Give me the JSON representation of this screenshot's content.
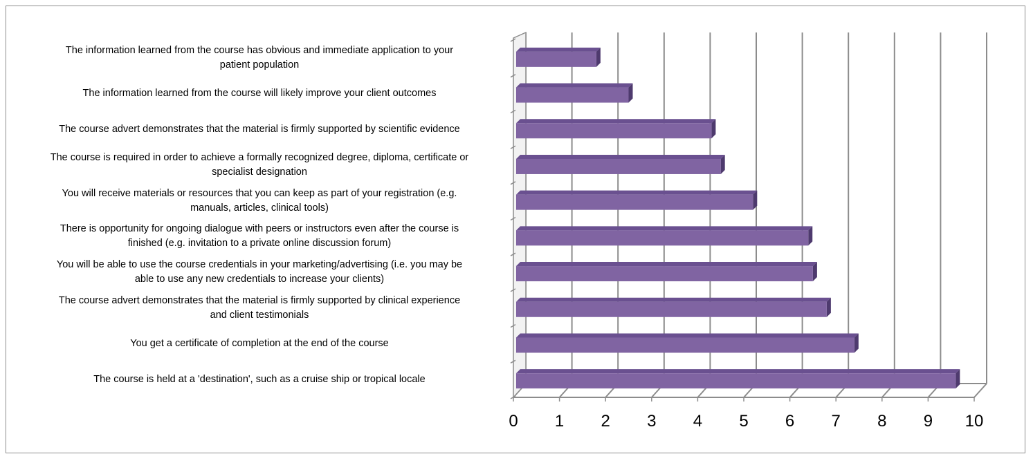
{
  "chart_data": {
    "type": "bar",
    "orientation": "horizontal",
    "style": "3d",
    "categories": [
      "The information learned from the course has obvious and immediate application to your patient population",
      "The information learned from the course will likely improve your client outcomes",
      "The course advert demonstrates that the material is firmly supported by scientific evidence",
      "The course is required in order to achieve a formally recognized degree, diploma, certificate or specialist designation",
      "You will receive materials or resources that you can keep as part of your registration (e.g. manuals, articles, clinical tools)",
      "There is opportunity for ongoing dialogue with peers or instructors even after the course is finished (e.g. invitation to a private online discussion forum)",
      "You will be able to use the course credentials in your marketing/advertising (i.e. you may be able to use any new credentials to increase your clients)",
      "The course advert demonstrates that the material is firmly supported by clinical experience and client testimonials",
      "You get a certificate of completion at the end of the course",
      "The course is held at a 'destination', such as a cruise ship or tropical locale"
    ],
    "label_lines": [
      [
        "The information learned from the course has obvious and immediate application to your",
        "patient population"
      ],
      [
        "The information learned from the course will likely improve your client outcomes"
      ],
      [
        "The course advert demonstrates that the material is firmly supported by scientific evidence"
      ],
      [
        "The course is required in order to achieve a formally recognized degree, diploma, certificate or",
        "specialist designation"
      ],
      [
        "You will receive materials or resources that you can keep as part of your registration (e.g.",
        "manuals, articles, clinical tools)"
      ],
      [
        "There is opportunity for ongoing dialogue with peers or instructors even after the course is",
        "finished (e.g. invitation to a private online discussion forum)"
      ],
      [
        "You will be able to use the course credentials in your marketing/advertising (i.e. you may be",
        "able to use any new credentials to increase your clients)"
      ],
      [
        "The course advert demonstrates that the material is firmly supported by clinical experience",
        "and client testimonials"
      ],
      [
        "You get a certificate of completion at the end of the course"
      ],
      [
        "The course is held at a 'destination', such as a cruise ship or tropical locale"
      ]
    ],
    "values": [
      1.8,
      2.5,
      4.3,
      4.5,
      5.2,
      6.4,
      6.5,
      6.8,
      7.4,
      9.6
    ],
    "xlim": [
      0,
      10
    ],
    "xticks": [
      "0",
      "1",
      "2",
      "3",
      "4",
      "5",
      "6",
      "7",
      "8",
      "9",
      "10"
    ],
    "title": "",
    "xlabel": "",
    "ylabel": "",
    "grid": true,
    "legend": "none",
    "colors": {
      "bar_front": "#8064a2",
      "bar_top": "#6a5090",
      "bar_side": "#4e3a6e",
      "grid": "#8c8c8c",
      "frame": "#8c8c8c"
    }
  }
}
